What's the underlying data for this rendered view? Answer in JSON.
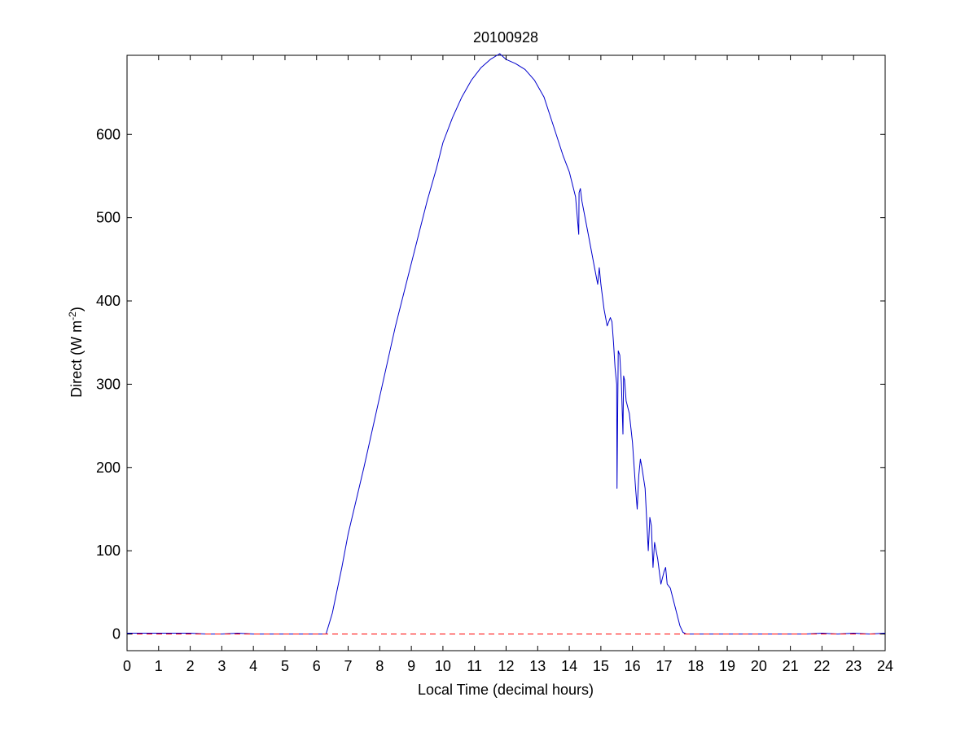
{
  "chart_data": {
    "type": "line",
    "title": "20100928",
    "xlabel": "Local Time (decimal hours)",
    "ylabel": "Direct (W m",
    "ylabel_superscript": "-2",
    "ylabel_close": ")",
    "xlim": [
      0,
      24
    ],
    "ylim": [
      -20,
      695
    ],
    "xticks": [
      0,
      1,
      2,
      3,
      4,
      5,
      6,
      7,
      8,
      9,
      10,
      11,
      12,
      13,
      14,
      15,
      16,
      17,
      18,
      19,
      20,
      21,
      22,
      23,
      24
    ],
    "yticks": [
      0,
      100,
      200,
      300,
      400,
      500,
      600
    ],
    "grid": false,
    "series": [
      {
        "color": "#0000cc",
        "style": "solid",
        "x": [
          0,
          1,
          2,
          2.5,
          3,
          3.5,
          4,
          5,
          6,
          6.2,
          6.3,
          6.5,
          6.8,
          7,
          7.5,
          8,
          8.5,
          9,
          9.5,
          9.8,
          10,
          10.3,
          10.6,
          10.9,
          11.2,
          11.5,
          11.8,
          12.0,
          12.3,
          12.6,
          12.9,
          13.2,
          13.5,
          13.8,
          14.0,
          14.2,
          14.3,
          14.31,
          14.35,
          14.4,
          14.6,
          14.8,
          14.9,
          14.95,
          15.0,
          15.1,
          15.2,
          15.3,
          15.35,
          15.4,
          15.45,
          15.5,
          15.51,
          15.55,
          15.6,
          15.65,
          15.7,
          15.72,
          15.75,
          15.8,
          15.9,
          16.0,
          16.1,
          16.15,
          16.2,
          16.25,
          16.3,
          16.4,
          16.5,
          16.55,
          16.6,
          16.65,
          16.7,
          16.8,
          16.9,
          17.0,
          17.05,
          17.1,
          17.2,
          17.3,
          17.4,
          17.5,
          17.6,
          17.7,
          18,
          19,
          20,
          21,
          21.5,
          22,
          22.5,
          23,
          23.5,
          24
        ],
        "y": [
          1,
          1,
          1,
          0,
          0,
          1,
          0,
          0,
          0,
          0,
          0,
          25,
          80,
          120,
          200,
          285,
          370,
          445,
          520,
          560,
          590,
          620,
          645,
          665,
          680,
          690,
          697,
          690,
          685,
          678,
          665,
          645,
          610,
          575,
          555,
          525,
          480,
          530,
          535,
          520,
          480,
          440,
          420,
          440,
          420,
          390,
          370,
          380,
          375,
          350,
          320,
          300,
          175,
          340,
          335,
          300,
          240,
          310,
          305,
          280,
          265,
          230,
          175,
          150,
          190,
          210,
          200,
          175,
          100,
          140,
          130,
          80,
          110,
          90,
          60,
          75,
          80,
          60,
          55,
          40,
          25,
          10,
          2,
          0,
          0,
          0,
          0,
          0,
          0,
          1,
          0,
          1,
          0,
          1
        ]
      },
      {
        "color": "#ff0000",
        "style": "dashed",
        "x": [
          0,
          24
        ],
        "y": [
          0,
          0
        ]
      }
    ]
  }
}
